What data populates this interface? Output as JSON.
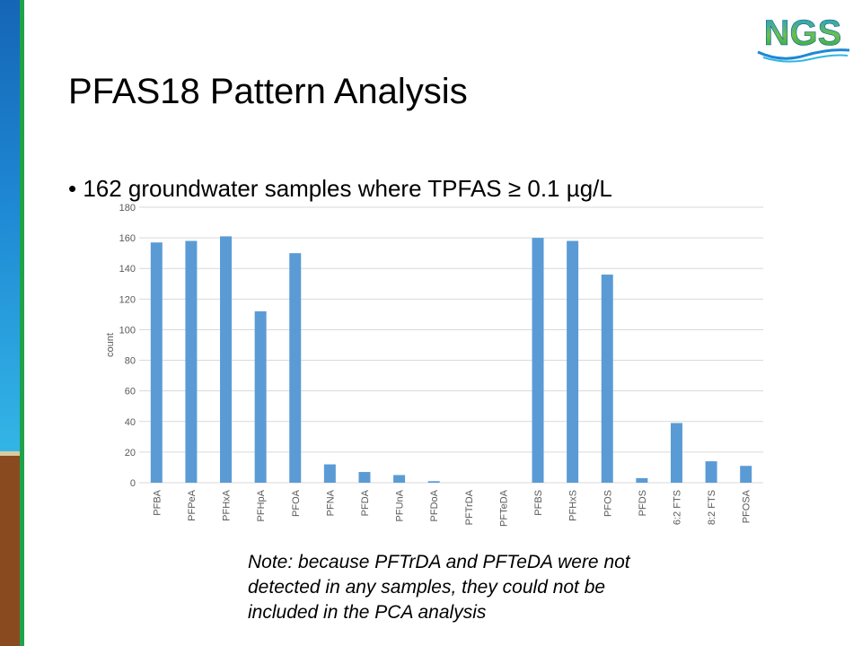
{
  "slide": {
    "title": "PFAS18 Pattern Analysis",
    "bullet": "• 162 groundwater samples where TPFAS ≥ 0.1 µg/L",
    "note": "Note: because PFTrDA and PFTeDA were not detected in any samples, they could not be included in the PCA analysis",
    "logo_text": "NGS"
  },
  "colors": {
    "bar": "#5b9bd5",
    "grid": "#d9d9d9",
    "axis_text": "#595959",
    "side_blue": "#1e88d4",
    "side_green": "#1ea24a",
    "side_brown": "#8a4a1f"
  },
  "chart_data": {
    "type": "bar",
    "categories": [
      "PFBA",
      "PFPeA",
      "PFHxA",
      "PFHpA",
      "PFOA",
      "PFNA",
      "PFDA",
      "PFUnA",
      "PFDoA",
      "PFTrDA",
      "PFTeDA",
      "PFBS",
      "PFHxS",
      "PFOS",
      "PFDS",
      "6:2 FTS",
      "8:2 FTS",
      "PFOSA"
    ],
    "values": [
      157,
      158,
      161,
      112,
      150,
      12,
      7,
      5,
      1,
      0,
      0,
      160,
      158,
      136,
      3,
      39,
      14,
      11
    ],
    "ylabel": "count",
    "ylim": [
      0,
      180
    ],
    "yticks": [
      "0",
      "20",
      "40",
      "60",
      "80",
      "100",
      "120",
      "140",
      "160",
      "180"
    ],
    "grid": true
  }
}
